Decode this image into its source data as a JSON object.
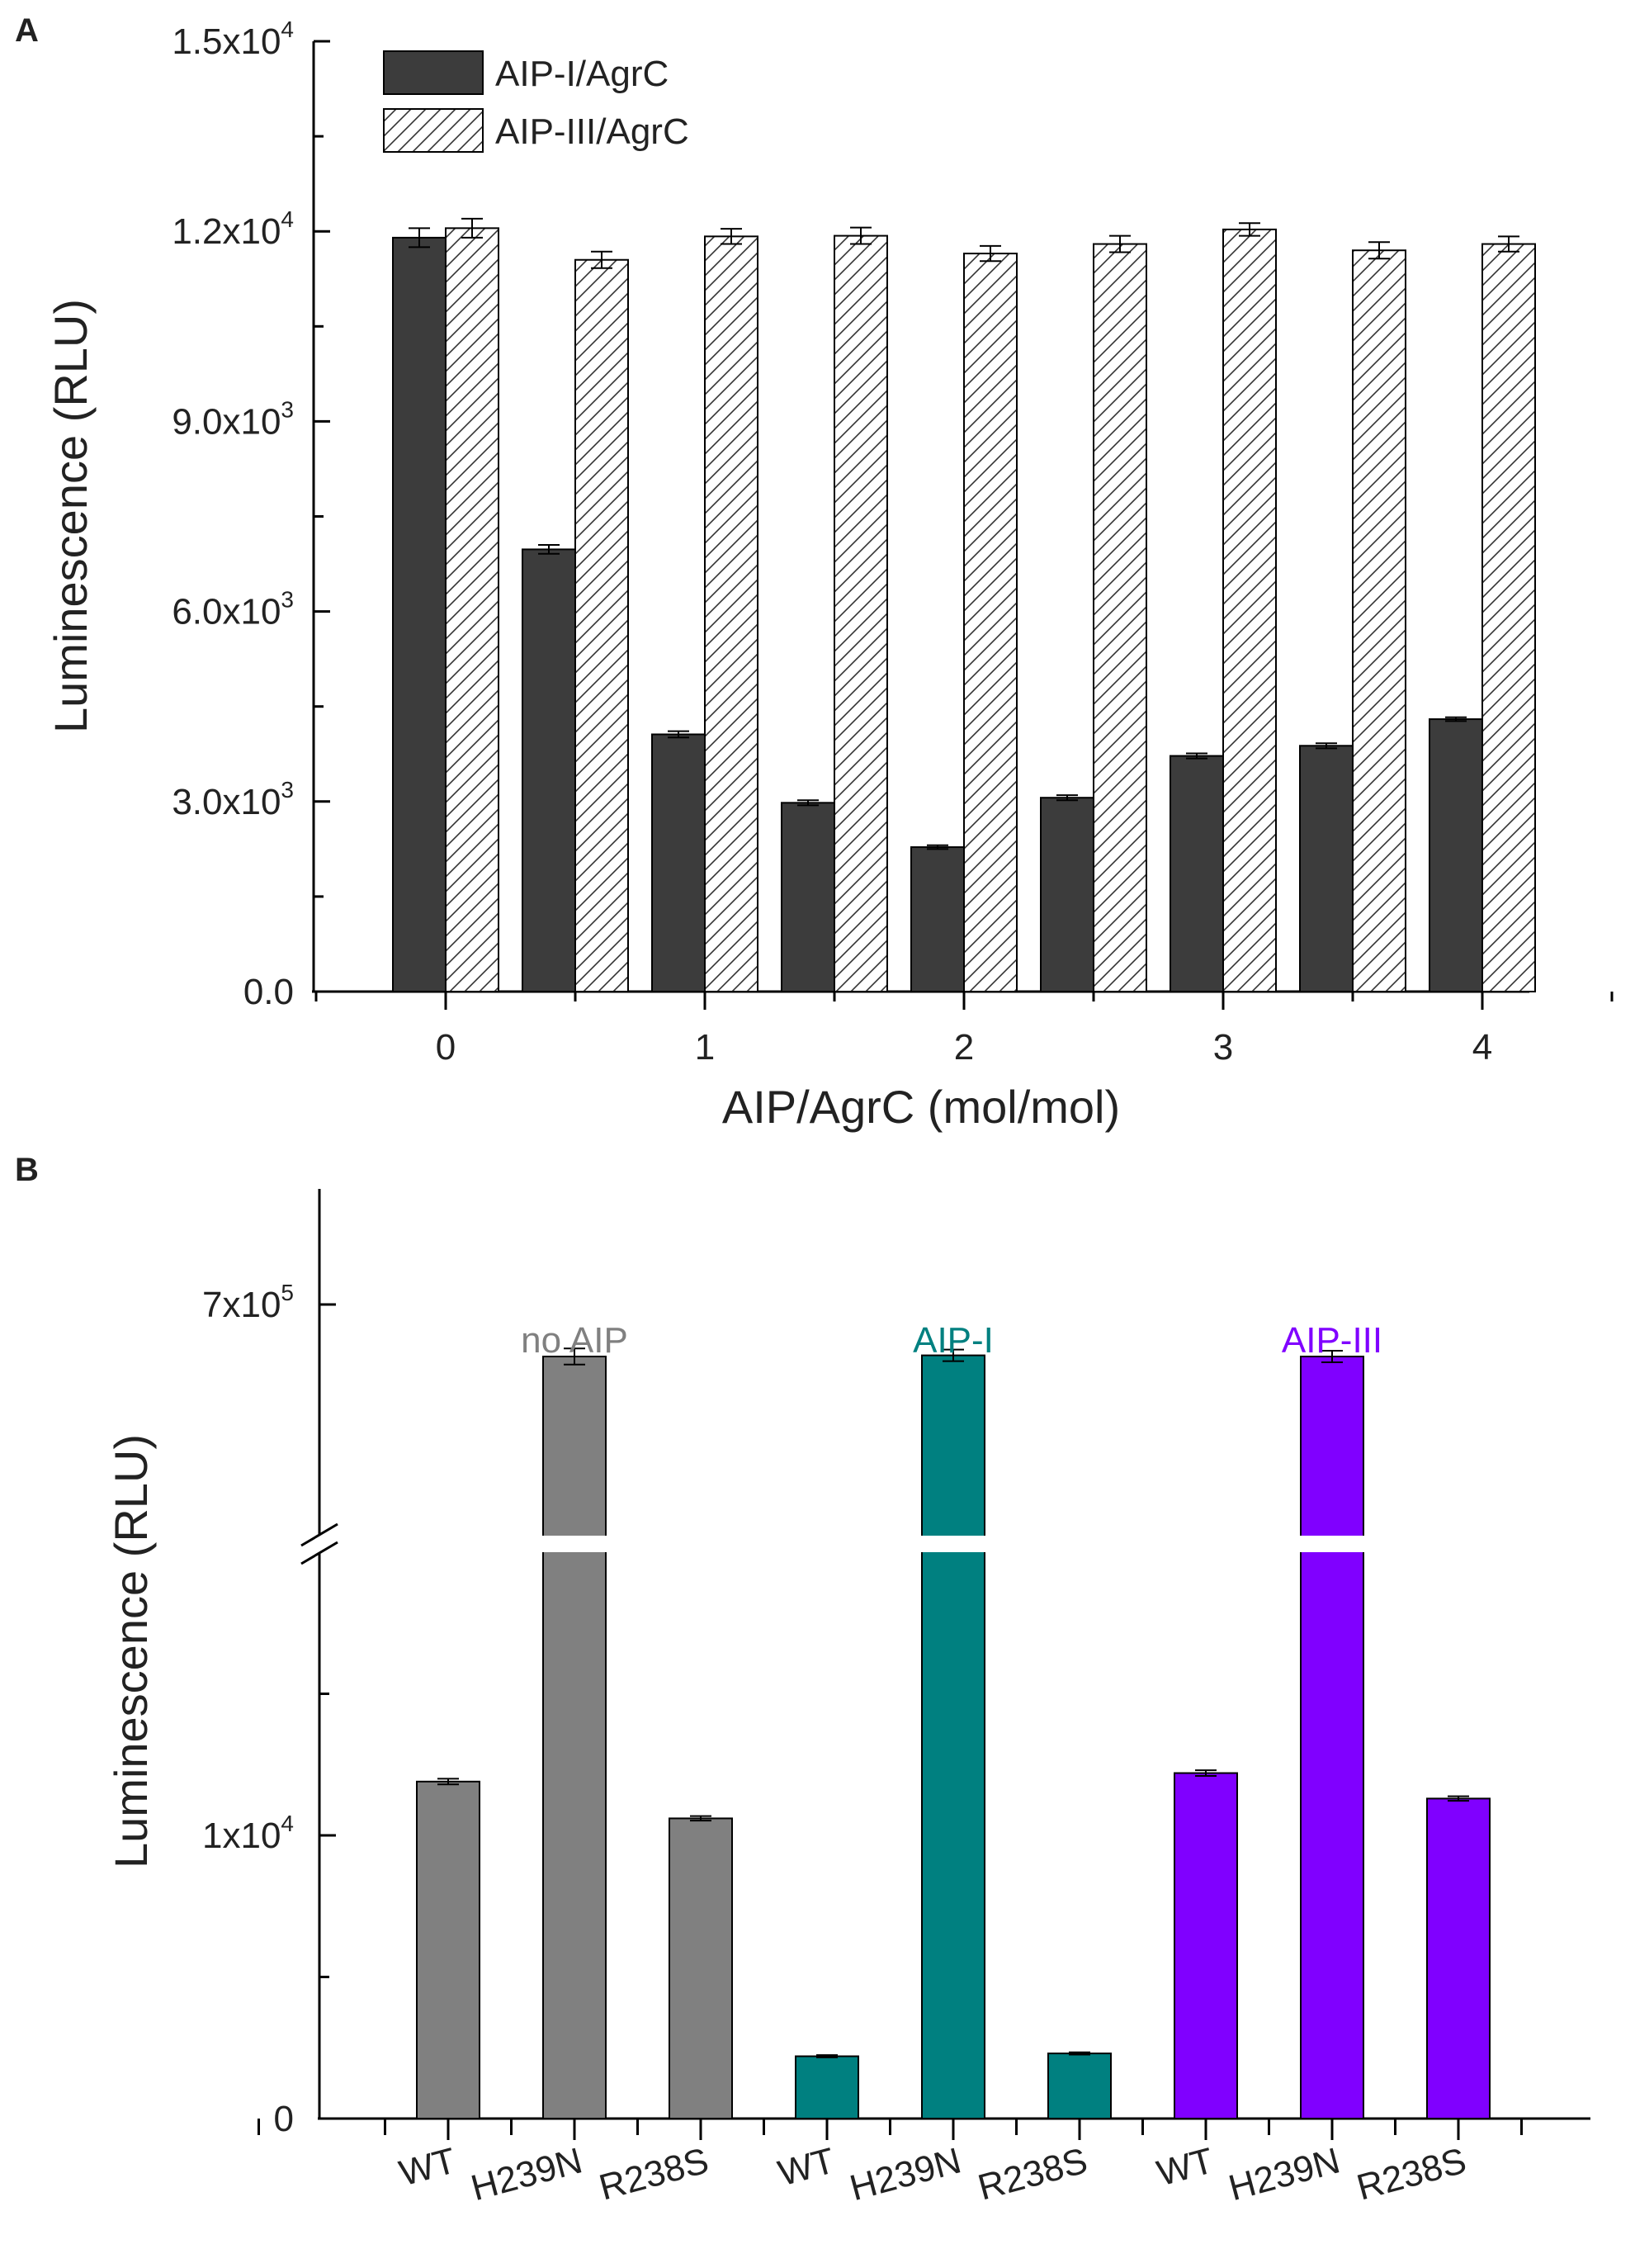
{
  "chart_data": [
    {
      "panel": "A",
      "type": "bar",
      "xlabel": "AIP/AgrC (mol/mol)",
      "ylabel": "Luminescence (RLU)",
      "ylim": [
        0,
        15000
      ],
      "yticks": [
        {
          "value": 0,
          "base": "0.0",
          "exp": ""
        },
        {
          "value": 3000,
          "base": "3.0x10",
          "exp": "3"
        },
        {
          "value": 6000,
          "base": "6.0x10",
          "exp": "3"
        },
        {
          "value": 9000,
          "base": "9.0x10",
          "exp": "3"
        },
        {
          "value": 12000,
          "base": "1.2x10",
          "exp": "4"
        },
        {
          "value": 15000,
          "base": "1.5x10",
          "exp": "4"
        }
      ],
      "xlim": [
        -0.5,
        4.5
      ],
      "xticks": [
        0,
        1,
        2,
        3,
        4
      ],
      "x": [
        0,
        0.5,
        1,
        1.5,
        2,
        2.5,
        3,
        3.5,
        4
      ],
      "legend_position": "top-left",
      "series": [
        {
          "name": "AIP-I/AgrC",
          "style": "solid",
          "color": "#3c3c3c",
          "values": [
            11900,
            6980,
            4060,
            2980,
            2280,
            3060,
            3720,
            3880,
            4300
          ],
          "errors": [
            150,
            70,
            50,
            40,
            30,
            40,
            40,
            40,
            30
          ]
        },
        {
          "name": "AIP-III/AgrC",
          "style": "hatched",
          "color": "#ffffff",
          "values": [
            12050,
            11550,
            11920,
            11930,
            11650,
            11800,
            12030,
            11700,
            11800
          ],
          "errors": [
            150,
            130,
            120,
            130,
            120,
            130,
            100,
            130,
            120
          ]
        }
      ]
    },
    {
      "panel": "B",
      "type": "bar",
      "ylabel": "Luminescence (RLU)",
      "y_axis_break": true,
      "ylim_lower": [
        0,
        20000
      ],
      "ylim_upper": [
        500000,
        800000
      ],
      "yticks": [
        {
          "value": 0,
          "base": "0",
          "exp": ""
        },
        {
          "value": 10000,
          "base": "1x10",
          "exp": "4"
        },
        {
          "value": 700000,
          "base": "7x10",
          "exp": "5"
        }
      ],
      "categories": [
        "WT",
        "H239N",
        "R238S",
        "WT",
        "H239N",
        "R238S",
        "WT",
        "H239N",
        "R238S"
      ],
      "values": [
        11900,
        655000,
        10600,
        2200,
        656000,
        2300,
        12200,
        655000,
        11300
      ],
      "errors": [
        100,
        7000,
        80,
        40,
        5000,
        40,
        100,
        5000,
        80
      ],
      "groups": [
        {
          "label": "no AIP",
          "color": "#808080"
        },
        {
          "label": "AIP-I",
          "color": "#008080"
        },
        {
          "label": "AIP-III",
          "color": "#8000ff"
        }
      ]
    }
  ]
}
